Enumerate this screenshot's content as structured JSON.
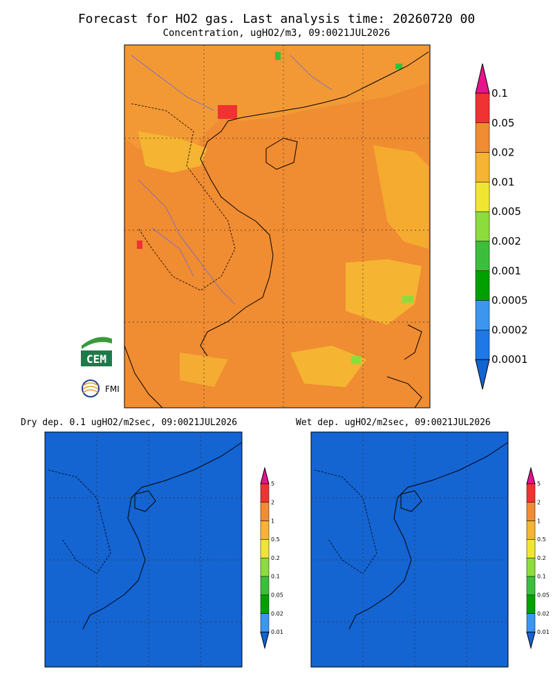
{
  "header": {
    "title": "Forecast for HO2 gas. Last analysis time: 20260720 00",
    "subtitle": "Concentration, ugHO2/m3, 09:0021JUL2026"
  },
  "main_map": {
    "colorbar": {
      "labels": [
        "0.1",
        "0.05",
        "0.02",
        "0.01",
        "0.005",
        "0.002",
        "0.001",
        "0.0005",
        "0.0002",
        "0.0001"
      ]
    }
  },
  "logos": {
    "cem": "CEM",
    "fmi": "FMI"
  },
  "panels": [
    {
      "title": "Dry dep. 0.1 ugHO2/m2sec, 09:0021JUL2026",
      "colorbar": {
        "labels": [
          "5",
          "2",
          "1",
          "0.5",
          "0.2",
          "0.1",
          "0.05",
          "0.02",
          "0.01"
        ]
      }
    },
    {
      "title": "Wet dep. ugHO2/m2sec, 09:0021JUL2026",
      "colorbar": {
        "labels": [
          "5",
          "2",
          "1",
          "0.5",
          "0.2",
          "0.1",
          "0.05",
          "0.02",
          "0.01"
        ]
      }
    }
  ]
}
